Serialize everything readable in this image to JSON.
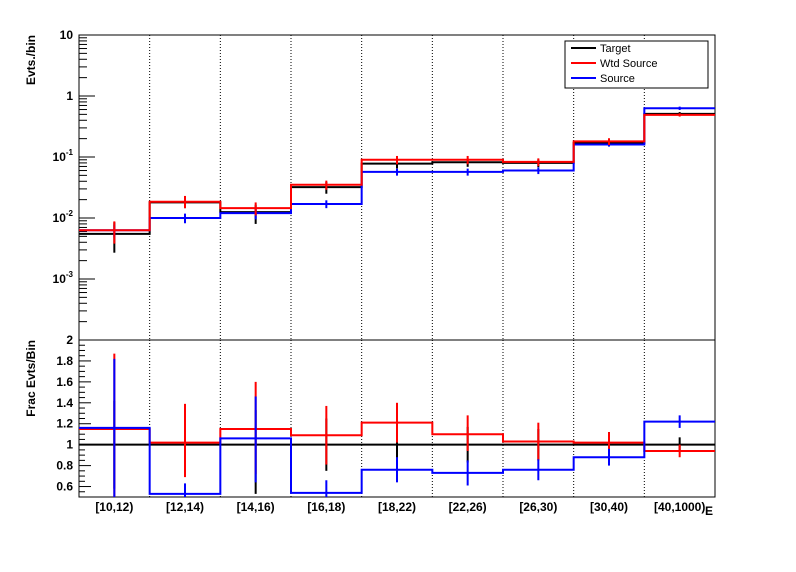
{
  "chart_data": [
    {
      "type": "line",
      "ylabel": "Evts./bin",
      "yscale": "log",
      "ylim": [
        0.0001,
        10
      ],
      "yticks": [
        {
          "v": 10,
          "base": "10",
          "exp": ""
        },
        {
          "v": 1,
          "base": "1",
          "exp": ""
        },
        {
          "v": 0.1,
          "base": "10",
          "exp": "-1"
        },
        {
          "v": 0.01,
          "base": "10",
          "exp": "-2"
        },
        {
          "v": 0.001,
          "base": "10",
          "exp": "-3"
        }
      ],
      "categories": [
        "[10,12)",
        "[12,14)",
        "[14,16)",
        "[16,18)",
        "[18,22)",
        "[22,26)",
        "[26,30)",
        "[30,40)",
        "[40,1000)"
      ],
      "legend_position": "top-right",
      "series": [
        {
          "name": "Target",
          "color": "#000000",
          "values": [
            0.0055,
            0.018,
            0.0125,
            0.032,
            0.078,
            0.082,
            0.08,
            0.17,
            0.51
          ],
          "err_lo": [
            0.0028,
            0.0035,
            0.0045,
            0.007,
            0.013,
            0.013,
            0.012,
            0.02,
            0.035
          ],
          "err_hi": [
            0.003,
            0.004,
            0.004,
            0.007,
            0.012,
            0.012,
            0.011,
            0.02,
            0.035
          ]
        },
        {
          "name": "Wtd Source",
          "color": "#ff0000",
          "values": [
            0.0063,
            0.0185,
            0.0145,
            0.035,
            0.09,
            0.09,
            0.083,
            0.18,
            0.49
          ],
          "err_lo": [
            0.0025,
            0.004,
            0.0035,
            0.006,
            0.014,
            0.014,
            0.012,
            0.023,
            0.03
          ],
          "err_hi": [
            0.0025,
            0.0045,
            0.0035,
            0.006,
            0.014,
            0.014,
            0.012,
            0.023,
            0.03
          ]
        },
        {
          "name": "Source",
          "color": "#0000ff",
          "values": [
            0.0063,
            0.01,
            0.012,
            0.017,
            0.057,
            0.057,
            0.06,
            0.16,
            0.63
          ],
          "err_lo": [
            0.0015,
            0.0018,
            0.0025,
            0.0025,
            0.0075,
            0.0075,
            0.0075,
            0.012,
            0.04
          ],
          "err_hi": [
            0.0015,
            0.0018,
            0.0025,
            0.0025,
            0.0075,
            0.0075,
            0.0075,
            0.012,
            0.04
          ]
        }
      ]
    },
    {
      "type": "line",
      "ylabel": "Frac Evts/Bin",
      "ylim": [
        0.5,
        2
      ],
      "yticks": [
        "0.6",
        "0.8",
        "1",
        "1.2",
        "1.4",
        "1.6",
        "1.8",
        "2"
      ],
      "categories": [
        "[10,12)",
        "[12,14)",
        "[14,16)",
        "[16,18)",
        "[18,22)",
        "[22,26)",
        "[26,30)",
        "[30,40)",
        "[40,1000)"
      ],
      "xlabel_partial": "E",
      "series": [
        {
          "name": "Target",
          "color": "#000000",
          "values": [
            1,
            1,
            1,
            1,
            1,
            1,
            1,
            1,
            1
          ],
          "err_lo": [
            0.42,
            0.2,
            0.47,
            0.25,
            0.18,
            0.17,
            0.15,
            0.12,
            0.07
          ],
          "err_hi": [
            0.42,
            0.2,
            0.33,
            0.25,
            0.18,
            0.17,
            0.15,
            0.12,
            0.07
          ]
        },
        {
          "name": "Wtd Source",
          "color": "#ff0000",
          "values": [
            1.15,
            1.02,
            1.15,
            1.09,
            1.21,
            1.1,
            1.03,
            1.02,
            0.94
          ],
          "err_lo": [
            0.72,
            0.33,
            0.43,
            0.28,
            0.19,
            0.16,
            0.18,
            0.1,
            0.06
          ],
          "err_hi": [
            0.72,
            0.37,
            0.45,
            0.28,
            0.19,
            0.18,
            0.18,
            0.1,
            0.06
          ]
        },
        {
          "name": "Source",
          "color": "#0000ff",
          "values": [
            1.16,
            0.53,
            1.06,
            0.54,
            0.76,
            0.73,
            0.76,
            0.88,
            1.22
          ],
          "err_lo": [
            0.66,
            0.1,
            0.42,
            0.12,
            0.12,
            0.12,
            0.1,
            0.08,
            0.06
          ],
          "err_hi": [
            0.66,
            0.1,
            0.4,
            0.12,
            0.12,
            0.12,
            0.1,
            0.08,
            0.06
          ]
        }
      ]
    }
  ]
}
